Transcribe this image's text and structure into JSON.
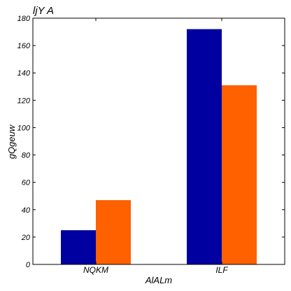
{
  "chart_data": {
    "type": "bar",
    "title": "ljY A",
    "xlabel": "AlALm",
    "ylabel": "gQgeuw",
    "categories": [
      "NQKM",
      "ILF"
    ],
    "series": [
      {
        "values": [
          25,
          172
        ],
        "color": "#0000a0"
      },
      {
        "values": [
          47,
          131
        ],
        "color": "#ff6000"
      }
    ],
    "ylim": [
      0,
      180
    ],
    "yticks": [
      0,
      20,
      40,
      60,
      80,
      100,
      120,
      140,
      160,
      180
    ],
    "grid": false,
    "legend": "none"
  }
}
